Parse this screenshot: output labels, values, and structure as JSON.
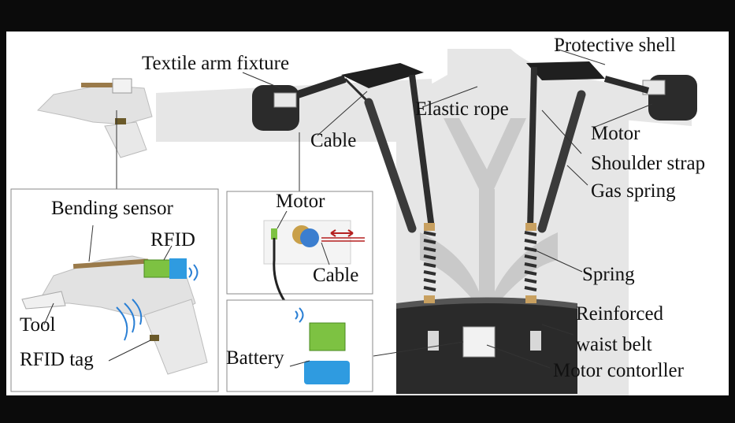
{
  "figure": {
    "labels": {
      "textile_arm_fixture": "Textile arm fixture",
      "protective_shell": "Protective shell",
      "elastic_rope": "Elastic rope",
      "cable_top": "Cable",
      "motor_right": "Motor",
      "shoulder_strap": "Shoulder strap",
      "gas_spring": "Gas spring",
      "spring": "Spring",
      "reinforced_line1": "Reinforced",
      "reinforced_line2": "waist belt",
      "motor_controller": "Motor contorller",
      "bending_sensor": "Bending sensor",
      "rfid": "RFID",
      "tool": "Tool",
      "rfid_tag": "RFID tag",
      "motor_inset": "Motor",
      "cable_inset": "Cable",
      "battery": "Battery"
    },
    "colors": {
      "body_silhouette": "#e6e6e6",
      "harness": "#c9c9c9",
      "dark_part": "#2b2b2b",
      "rfid_wave": "#2a7fd4",
      "cable_arrow": "#b52020",
      "pcb_green": "#7dc242",
      "battery_blue": "#2f9be0",
      "frame": "#0b0b0b"
    }
  }
}
